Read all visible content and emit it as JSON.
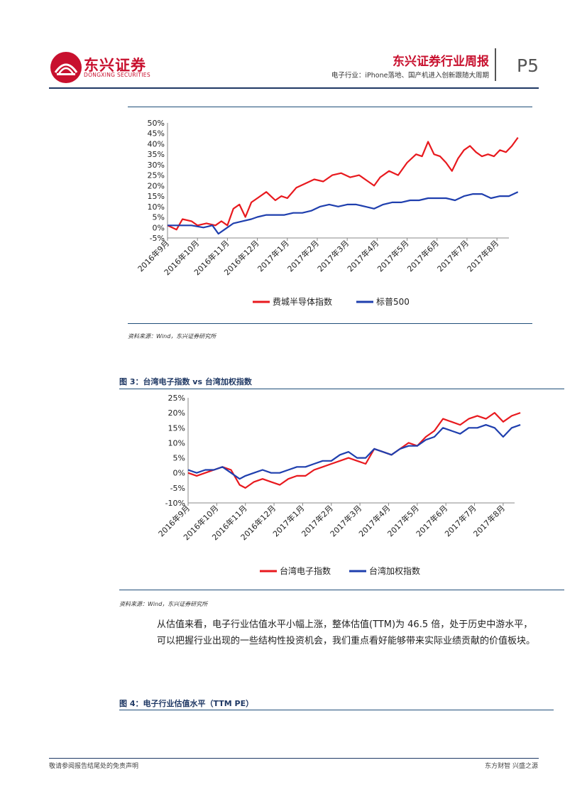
{
  "header": {
    "logo_cn": "东兴证券",
    "logo_en": "DONGXING SECURITIES",
    "report_title": "东兴证券行业周报",
    "report_subtitle": "电子行业：iPhone落地、国产机进入创新跟随大周期",
    "page_number": "P5"
  },
  "figure1": {
    "source_note": "资料来源：Wind，东兴证券研究所"
  },
  "figure3": {
    "title": "图 3：台湾电子指数 vs 台湾加权指数",
    "source_note": "资料来源：Wind，东兴证券研究所"
  },
  "body": {
    "paragraph": "从估值来看，电子行业估值水平小幅上涨，整体估值(TTM)为 46.5 倍，处于历史中游水平，可以把握行业出现的一些结构性投资机会，我们重点看好能够带来实际业绩贡献的价值板块。"
  },
  "figure4": {
    "title": "图 4：电子行业估值水平（TTM PE）"
  },
  "footer": {
    "left": "敬请参阅报告结尾处的免责声明",
    "right": "东方财智 兴盛之源"
  },
  "colors": {
    "red": "#e8191e",
    "blue": "#1f3fae",
    "navy": "#1f3864",
    "brand_red": "#c8102e"
  },
  "chart_data": [
    {
      "type": "line",
      "title": "",
      "xlabel": "",
      "ylabel": "",
      "ylim": [
        -5,
        50
      ],
      "yticks": [
        "-5%",
        "0%",
        "5%",
        "10%",
        "15%",
        "20%",
        "25%",
        "30%",
        "35%",
        "40%",
        "45%",
        "50%"
      ],
      "categories": [
        "2016年9月",
        "2016年10月",
        "2016年11月",
        "2016年12月",
        "2017年1月",
        "2017年2月",
        "2017年3月",
        "2017年4月",
        "2017年5月",
        "2017年6月",
        "2017年7月",
        "2017年8月"
      ],
      "legend_position": "bottom",
      "grid": false,
      "series": [
        {
          "name": "费城半导体指数",
          "color": "#e8191e",
          "x": [
            0,
            0.3,
            0.5,
            0.8,
            1.0,
            1.3,
            1.6,
            1.8,
            2.0,
            2.2,
            2.4,
            2.6,
            2.8,
            3.0,
            3.3,
            3.6,
            3.8,
            4.0,
            4.3,
            4.6,
            4.9,
            5.2,
            5.5,
            5.8,
            6.1,
            6.4,
            6.7,
            6.9,
            7.1,
            7.4,
            7.7,
            8.0,
            8.3,
            8.5,
            8.7,
            8.9,
            9.1,
            9.3,
            9.5,
            9.7,
            9.9,
            10.1,
            10.3,
            10.5,
            10.7,
            10.9,
            11.1,
            11.3,
            11.5,
            11.7
          ],
          "y": [
            1,
            -1,
            4,
            3,
            1,
            2,
            1,
            3,
            1,
            9,
            11,
            5,
            12,
            14,
            17,
            13,
            15,
            14,
            19,
            21,
            23,
            22,
            25,
            26,
            24,
            25,
            22,
            20,
            24,
            27,
            25,
            31,
            35,
            34,
            41,
            35,
            34,
            31,
            27,
            33,
            37,
            39,
            36,
            34,
            35,
            34,
            37,
            36,
            39,
            43
          ]
        },
        {
          "name": "标普500",
          "color": "#1f3fae",
          "x": [
            0,
            0.4,
            0.8,
            1.2,
            1.5,
            1.7,
            1.9,
            2.2,
            2.5,
            2.8,
            3.0,
            3.3,
            3.6,
            3.9,
            4.2,
            4.5,
            4.8,
            5.1,
            5.4,
            5.7,
            6.0,
            6.3,
            6.6,
            6.9,
            7.2,
            7.5,
            7.8,
            8.1,
            8.4,
            8.7,
            9.0,
            9.3,
            9.6,
            9.9,
            10.2,
            10.5,
            10.8,
            11.1,
            11.4,
            11.7
          ],
          "y": [
            1,
            1,
            1,
            0,
            1,
            -3,
            -1,
            2,
            3,
            4,
            5,
            6,
            6,
            6,
            7,
            7,
            8,
            10,
            11,
            10,
            11,
            11,
            10,
            9,
            11,
            12,
            12,
            13,
            13,
            14,
            14,
            14,
            13,
            15,
            16,
            16,
            14,
            15,
            15,
            17
          ]
        }
      ]
    },
    {
      "type": "line",
      "title": "",
      "xlabel": "",
      "ylabel": "",
      "ylim": [
        -10,
        25
      ],
      "yticks": [
        "-10%",
        "-5%",
        "0%",
        "5%",
        "10%",
        "15%",
        "20%",
        "25%"
      ],
      "categories": [
        "2016年9月",
        "2016年10月",
        "2016年11月",
        "2016年12月",
        "2017年1月",
        "2017年2月",
        "2017年3月",
        "2017年4月",
        "2017年5月",
        "2017年6月",
        "2017年7月",
        "2017年8月"
      ],
      "legend_position": "bottom",
      "grid": false,
      "series": [
        {
          "name": "台湾电子指数",
          "color": "#e8191e",
          "x": [
            0,
            0.3,
            0.6,
            0.9,
            1.2,
            1.5,
            1.8,
            2.0,
            2.3,
            2.6,
            2.9,
            3.2,
            3.5,
            3.8,
            4.1,
            4.4,
            4.7,
            5.0,
            5.3,
            5.6,
            5.9,
            6.2,
            6.5,
            6.8,
            7.1,
            7.4,
            7.7,
            8.0,
            8.3,
            8.6,
            8.9,
            9.2,
            9.5,
            9.8,
            10.1,
            10.4,
            10.7,
            11.0,
            11.3,
            11.6
          ],
          "y": [
            0,
            -1,
            0,
            1,
            2,
            1,
            -4,
            -5,
            -3,
            -2,
            -3,
            -4,
            -2,
            -1,
            -1,
            1,
            2,
            3,
            4,
            5,
            4,
            3,
            8,
            7,
            6,
            8,
            10,
            9,
            12,
            14,
            18,
            17,
            16,
            18,
            19,
            18,
            20,
            17,
            19,
            20
          ]
        },
        {
          "name": "台湾加权指数",
          "color": "#1f3fae",
          "x": [
            0,
            0.3,
            0.6,
            0.9,
            1.2,
            1.5,
            1.8,
            2.0,
            2.3,
            2.6,
            2.9,
            3.2,
            3.5,
            3.8,
            4.1,
            4.4,
            4.7,
            5.0,
            5.3,
            5.6,
            5.9,
            6.2,
            6.5,
            6.8,
            7.1,
            7.4,
            7.7,
            8.0,
            8.3,
            8.6,
            8.9,
            9.2,
            9.5,
            9.8,
            10.1,
            10.4,
            10.7,
            11.0,
            11.3,
            11.6
          ],
          "y": [
            1,
            0,
            1,
            1,
            2,
            0,
            -2,
            -1,
            0,
            1,
            0,
            0,
            1,
            2,
            2,
            3,
            4,
            4,
            6,
            7,
            5,
            5,
            8,
            7,
            6,
            8,
            9,
            9,
            11,
            12,
            15,
            14,
            13,
            15,
            15,
            16,
            15,
            12,
            15,
            16
          ]
        }
      ]
    }
  ]
}
